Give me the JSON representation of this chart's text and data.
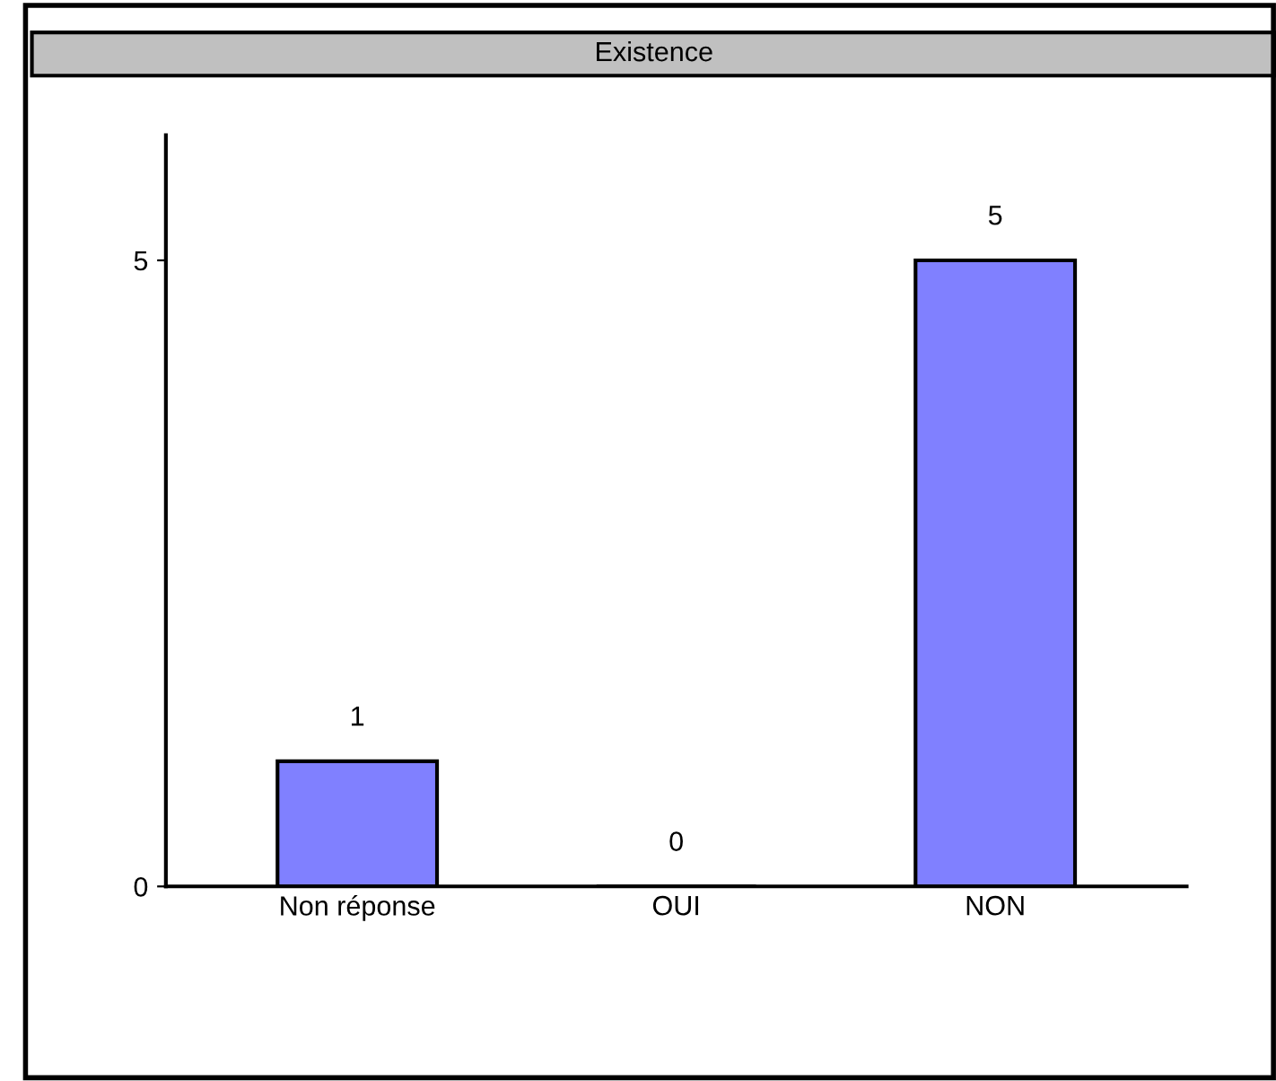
{
  "chart_data": {
    "type": "bar",
    "title": "Existence",
    "categories": [
      "Non réponse",
      "OUI",
      "NON"
    ],
    "values": [
      1,
      0,
      5
    ],
    "color": "#8080ff",
    "ylim": [
      0,
      6
    ],
    "yticks": [
      0,
      5
    ],
    "data_labels": true,
    "grid": false,
    "legend": false
  }
}
